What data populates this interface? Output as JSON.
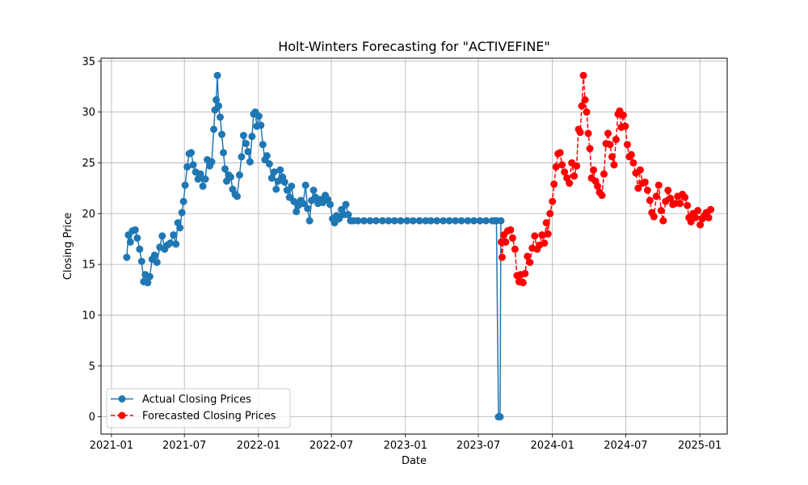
{
  "chart_data": {
    "type": "line",
    "title": "Holt-Winters Forecasting for \"ACTIVEFINE\"",
    "xlabel": "Date",
    "ylabel": "Closing Price",
    "xlim": [
      "2020-12-06",
      "2025-03-10"
    ],
    "ylim": [
      -1.7,
      35.3
    ],
    "x_ticks": [
      "2021-01",
      "2021-07",
      "2022-01",
      "2022-07",
      "2023-01",
      "2023-07",
      "2024-01",
      "2024-07",
      "2025-01"
    ],
    "y_ticks": [
      0,
      5,
      10,
      15,
      20,
      25,
      30,
      35
    ],
    "grid": true,
    "legend_position": "lower-left",
    "series": [
      {
        "name": "Actual Closing Prices",
        "color": "#1f77b4",
        "linestyle": "solid",
        "marker": "circle",
        "points": [
          [
            "2021-02-08",
            15.7
          ],
          [
            "2021-02-12",
            17.9
          ],
          [
            "2021-02-17",
            17.2
          ],
          [
            "2021-02-22",
            18.3
          ],
          [
            "2021-03-01",
            18.4
          ],
          [
            "2021-03-06",
            17.6
          ],
          [
            "2021-03-12",
            16.5
          ],
          [
            "2021-03-17",
            15.3
          ],
          [
            "2021-03-22",
            13.3
          ],
          [
            "2021-03-26",
            14.0
          ],
          [
            "2021-04-01",
            13.2
          ],
          [
            "2021-04-06",
            13.8
          ],
          [
            "2021-04-12",
            15.5
          ],
          [
            "2021-04-18",
            15.9
          ],
          [
            "2021-04-24",
            15.2
          ],
          [
            "2021-05-01",
            16.7
          ],
          [
            "2021-05-07",
            17.8
          ],
          [
            "2021-05-13",
            16.5
          ],
          [
            "2021-05-20",
            16.9
          ],
          [
            "2021-05-27",
            17.1
          ],
          [
            "2021-06-04",
            17.9
          ],
          [
            "2021-06-10",
            17.0
          ],
          [
            "2021-06-15",
            19.1
          ],
          [
            "2021-06-20",
            18.6
          ],
          [
            "2021-06-25",
            20.1
          ],
          [
            "2021-06-29",
            21.2
          ],
          [
            "2021-07-03",
            22.8
          ],
          [
            "2021-07-08",
            24.6
          ],
          [
            "2021-07-13",
            25.9
          ],
          [
            "2021-07-18",
            26.0
          ],
          [
            "2021-07-23",
            24.8
          ],
          [
            "2021-07-29",
            24.1
          ],
          [
            "2021-08-04",
            23.4
          ],
          [
            "2021-08-10",
            23.9
          ],
          [
            "2021-08-16",
            22.7
          ],
          [
            "2021-08-22",
            23.4
          ],
          [
            "2021-08-27",
            25.3
          ],
          [
            "2021-09-02",
            24.7
          ],
          [
            "2021-09-07",
            25.1
          ],
          [
            "2021-09-12",
            28.3
          ],
          [
            "2021-09-15",
            30.2
          ],
          [
            "2021-09-18",
            31.2
          ],
          [
            "2021-09-21",
            33.6
          ],
          [
            "2021-09-24",
            30.6
          ],
          [
            "2021-09-28",
            29.5
          ],
          [
            "2021-10-02",
            27.8
          ],
          [
            "2021-10-06",
            26.0
          ],
          [
            "2021-10-10",
            24.4
          ],
          [
            "2021-10-14",
            23.2
          ],
          [
            "2021-10-19",
            23.8
          ],
          [
            "2021-10-24",
            23.6
          ],
          [
            "2021-10-29",
            22.4
          ],
          [
            "2021-11-04",
            21.9
          ],
          [
            "2021-11-09",
            21.7
          ],
          [
            "2021-11-15",
            23.8
          ],
          [
            "2021-11-20",
            25.6
          ],
          [
            "2021-11-25",
            27.7
          ],
          [
            "2021-12-01",
            26.9
          ],
          [
            "2021-12-06",
            26.1
          ],
          [
            "2021-12-11",
            25.1
          ],
          [
            "2021-12-16",
            27.6
          ],
          [
            "2021-12-20",
            29.8
          ],
          [
            "2021-12-24",
            30.0
          ],
          [
            "2021-12-28",
            28.6
          ],
          [
            "2022-01-02",
            29.6
          ],
          [
            "2022-01-07",
            28.7
          ],
          [
            "2022-01-12",
            26.8
          ],
          [
            "2022-01-17",
            25.3
          ],
          [
            "2022-01-22",
            25.7
          ],
          [
            "2022-01-28",
            24.9
          ],
          [
            "2022-02-03",
            23.5
          ],
          [
            "2022-02-09",
            24.1
          ],
          [
            "2022-02-14",
            22.4
          ],
          [
            "2022-02-19",
            23.2
          ],
          [
            "2022-02-24",
            24.3
          ],
          [
            "2022-03-02",
            23.6
          ],
          [
            "2022-03-07",
            23.1
          ],
          [
            "2022-03-13",
            22.3
          ],
          [
            "2022-03-19",
            21.6
          ],
          [
            "2022-03-24",
            22.7
          ],
          [
            "2022-03-30",
            21.2
          ],
          [
            "2022-04-05",
            20.2
          ],
          [
            "2022-04-10",
            20.8
          ],
          [
            "2022-04-16",
            21.3
          ],
          [
            "2022-04-22",
            21.0
          ],
          [
            "2022-04-28",
            22.8
          ],
          [
            "2022-05-03",
            20.5
          ],
          [
            "2022-05-08",
            19.3
          ],
          [
            "2022-05-13",
            21.3
          ],
          [
            "2022-05-18",
            22.3
          ],
          [
            "2022-05-23",
            21.6
          ],
          [
            "2022-05-29",
            21.0
          ],
          [
            "2022-06-04",
            21.4
          ],
          [
            "2022-06-10",
            21.1
          ],
          [
            "2022-06-16",
            21.8
          ],
          [
            "2022-06-22",
            21.4
          ],
          [
            "2022-06-28",
            20.9
          ],
          [
            "2022-07-04",
            19.5
          ],
          [
            "2022-07-09",
            19.1
          ],
          [
            "2022-07-14",
            19.8
          ],
          [
            "2022-07-20",
            19.5
          ],
          [
            "2022-07-26",
            20.4
          ],
          [
            "2022-08-01",
            19.9
          ],
          [
            "2022-08-06",
            20.9
          ],
          [
            "2022-08-12",
            19.9
          ],
          [
            "2022-08-18",
            19.3
          ],
          [
            "2022-08-25",
            19.3
          ],
          [
            "2022-09-05",
            19.3
          ],
          [
            "2022-09-20",
            19.3
          ],
          [
            "2022-10-05",
            19.3
          ],
          [
            "2022-10-20",
            19.3
          ],
          [
            "2022-11-05",
            19.3
          ],
          [
            "2022-11-20",
            19.3
          ],
          [
            "2022-12-05",
            19.3
          ],
          [
            "2022-12-20",
            19.3
          ],
          [
            "2023-01-05",
            19.3
          ],
          [
            "2023-01-20",
            19.3
          ],
          [
            "2023-02-05",
            19.3
          ],
          [
            "2023-02-20",
            19.3
          ],
          [
            "2023-03-05",
            19.3
          ],
          [
            "2023-03-20",
            19.3
          ],
          [
            "2023-04-05",
            19.3
          ],
          [
            "2023-04-20",
            19.3
          ],
          [
            "2023-05-05",
            19.3
          ],
          [
            "2023-05-20",
            19.3
          ],
          [
            "2023-06-05",
            19.3
          ],
          [
            "2023-06-20",
            19.3
          ],
          [
            "2023-07-05",
            19.3
          ],
          [
            "2023-07-20",
            19.3
          ],
          [
            "2023-08-05",
            19.3
          ],
          [
            "2023-08-12",
            19.3
          ],
          [
            "2023-08-15",
            19.3
          ],
          [
            "2023-08-20",
            0.0
          ],
          [
            "2023-08-24",
            0.0
          ],
          [
            "2023-08-26",
            19.3
          ]
        ]
      },
      {
        "name": "Forecasted Closing Prices",
        "color": "#ff0000",
        "linestyle": "dashed",
        "marker": "circle",
        "points": [
          [
            "2023-08-27",
            17.2
          ],
          [
            "2023-08-29",
            15.7
          ],
          [
            "2023-09-02",
            17.9
          ],
          [
            "2023-09-07",
            17.2
          ],
          [
            "2023-09-12",
            18.3
          ],
          [
            "2023-09-19",
            18.4
          ],
          [
            "2023-09-24",
            17.6
          ],
          [
            "2023-09-30",
            16.5
          ],
          [
            "2023-10-05",
            13.9
          ],
          [
            "2023-10-10",
            13.3
          ],
          [
            "2023-10-14",
            14.0
          ],
          [
            "2023-10-20",
            13.2
          ],
          [
            "2023-10-25",
            14.1
          ],
          [
            "2023-10-31",
            15.8
          ],
          [
            "2023-11-06",
            15.2
          ],
          [
            "2023-11-12",
            16.6
          ],
          [
            "2023-11-18",
            17.8
          ],
          [
            "2023-11-24",
            16.5
          ],
          [
            "2023-11-30",
            16.9
          ],
          [
            "2023-12-06",
            17.9
          ],
          [
            "2023-12-12",
            17.1
          ],
          [
            "2023-12-17",
            19.1
          ],
          [
            "2023-12-21",
            18.0
          ],
          [
            "2023-12-26",
            20.0
          ],
          [
            "2024-01-01",
            21.2
          ],
          [
            "2024-01-05",
            22.9
          ],
          [
            "2024-01-10",
            24.6
          ],
          [
            "2024-01-15",
            25.9
          ],
          [
            "2024-01-20",
            26.0
          ],
          [
            "2024-01-25",
            24.8
          ],
          [
            "2024-01-31",
            24.1
          ],
          [
            "2024-02-06",
            23.5
          ],
          [
            "2024-02-12",
            23.0
          ],
          [
            "2024-02-18",
            25.0
          ],
          [
            "2024-02-24",
            23.7
          ],
          [
            "2024-03-01",
            24.7
          ],
          [
            "2024-03-06",
            28.3
          ],
          [
            "2024-03-10",
            28.0
          ],
          [
            "2024-03-14",
            30.6
          ],
          [
            "2024-03-18",
            33.6
          ],
          [
            "2024-03-22",
            31.2
          ],
          [
            "2024-03-26",
            30.0
          ],
          [
            "2024-03-30",
            27.9
          ],
          [
            "2024-04-03",
            26.4
          ],
          [
            "2024-04-07",
            23.5
          ],
          [
            "2024-04-12",
            24.3
          ],
          [
            "2024-04-17",
            23.2
          ],
          [
            "2024-04-22",
            22.7
          ],
          [
            "2024-04-27",
            22.1
          ],
          [
            "2024-05-03",
            21.8
          ],
          [
            "2024-05-08",
            23.9
          ],
          [
            "2024-05-13",
            26.9
          ],
          [
            "2024-05-18",
            27.9
          ],
          [
            "2024-05-23",
            26.8
          ],
          [
            "2024-05-28",
            25.6
          ],
          [
            "2024-06-02",
            24.8
          ],
          [
            "2024-06-07",
            27.3
          ],
          [
            "2024-06-12",
            29.8
          ],
          [
            "2024-06-16",
            30.1
          ],
          [
            "2024-06-20",
            28.5
          ],
          [
            "2024-06-25",
            29.7
          ],
          [
            "2024-06-30",
            28.6
          ],
          [
            "2024-07-05",
            26.8
          ],
          [
            "2024-07-10",
            25.6
          ],
          [
            "2024-07-15",
            25.8
          ],
          [
            "2024-07-20",
            25.0
          ],
          [
            "2024-07-26",
            24.0
          ],
          [
            "2024-08-01",
            22.5
          ],
          [
            "2024-08-06",
            24.3
          ],
          [
            "2024-08-12",
            23.0
          ],
          [
            "2024-08-18",
            23.1
          ],
          [
            "2024-08-24",
            22.3
          ],
          [
            "2024-08-30",
            21.3
          ],
          [
            "2024-09-04",
            20.1
          ],
          [
            "2024-09-09",
            19.7
          ],
          [
            "2024-09-15",
            21.7
          ],
          [
            "2024-09-21",
            22.8
          ],
          [
            "2024-09-27",
            20.3
          ],
          [
            "2024-10-02",
            19.3
          ],
          [
            "2024-10-08",
            21.2
          ],
          [
            "2024-10-14",
            22.3
          ],
          [
            "2024-10-20",
            21.5
          ],
          [
            "2024-10-26",
            20.9
          ],
          [
            "2024-11-01",
            21.0
          ],
          [
            "2024-11-07",
            21.7
          ],
          [
            "2024-11-13",
            21.0
          ],
          [
            "2024-11-19",
            21.9
          ],
          [
            "2024-11-25",
            21.6
          ],
          [
            "2024-12-01",
            20.8
          ],
          [
            "2024-12-05",
            19.6
          ],
          [
            "2024-12-10",
            19.2
          ],
          [
            "2024-12-15",
            20.0
          ],
          [
            "2024-12-21",
            19.6
          ],
          [
            "2024-12-27",
            20.3
          ],
          [
            "2025-01-02",
            18.9
          ],
          [
            "2025-01-07",
            19.5
          ],
          [
            "2025-01-12",
            19.8
          ],
          [
            "2025-01-17",
            20.1
          ],
          [
            "2025-01-23",
            19.6
          ],
          [
            "2025-01-28",
            20.4
          ]
        ]
      }
    ]
  }
}
